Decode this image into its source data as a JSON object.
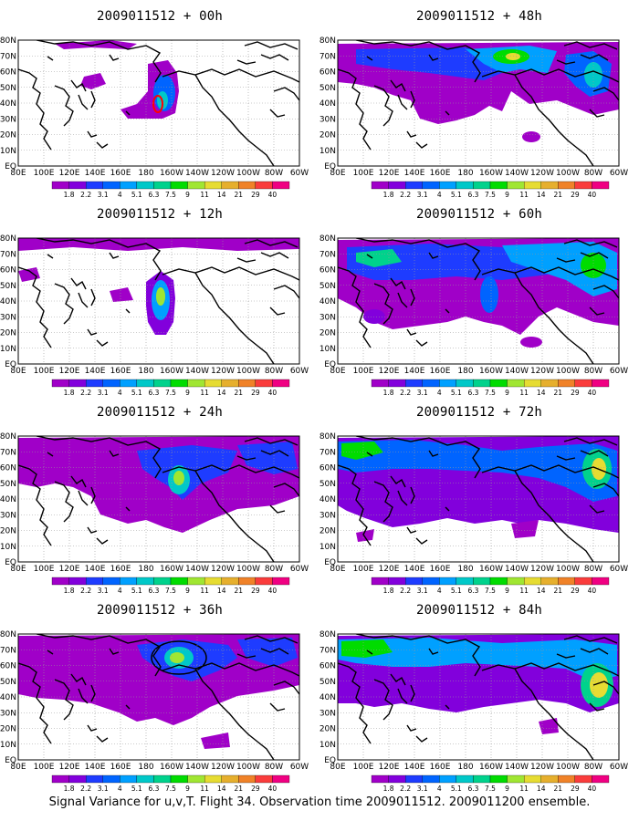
{
  "caption": "Signal Variance for u,v,T. Flight 34. Observation time 2009011512. 2009011200 ensemble.",
  "colorbar": {
    "labels": [
      "1.8",
      "2.2",
      "3.1",
      "4",
      "5.1",
      "6.3",
      "7.5",
      "9",
      "11",
      "14",
      "21",
      "29",
      "40"
    ],
    "colors": [
      "#a000c8",
      "#8200dc",
      "#1e3cff",
      "#0064ff",
      "#00a0ff",
      "#00c8c8",
      "#00d28c",
      "#00dc00",
      "#a0e632",
      "#e6dc32",
      "#e6af2d",
      "#f08228",
      "#fa3c3c",
      "#f00082"
    ]
  },
  "axes": {
    "y_labels": [
      "80N",
      "70N",
      "60N",
      "50N",
      "40N",
      "30N",
      "20N",
      "10N",
      "EQ"
    ],
    "x_labels": [
      "80E",
      "100E",
      "120E",
      "140E",
      "160E",
      "180",
      "160W",
      "140W",
      "120W",
      "100W",
      "80W",
      "60W"
    ]
  },
  "panels": [
    {
      "id": "p00",
      "title": "2009011512 + 00h",
      "col": 0,
      "row": 0
    },
    {
      "id": "p48",
      "title": "2009011512 + 48h",
      "col": 1,
      "row": 0
    },
    {
      "id": "p12",
      "title": "2009011512 + 12h",
      "col": 0,
      "row": 1
    },
    {
      "id": "p60",
      "title": "2009011512 + 60h",
      "col": 1,
      "row": 1
    },
    {
      "id": "p24",
      "title": "2009011512 + 24h",
      "col": 0,
      "row": 2
    },
    {
      "id": "p72",
      "title": "2009011512 + 72h",
      "col": 1,
      "row": 2
    },
    {
      "id": "p36",
      "title": "2009011512 + 36h",
      "col": 0,
      "row": 3
    },
    {
      "id": "p84",
      "title": "2009011512 + 84h",
      "col": 1,
      "row": 3
    }
  ],
  "colors": {
    "land_outline": "#000000",
    "grid": "#999999",
    "observation_marker": "#ff0000"
  }
}
